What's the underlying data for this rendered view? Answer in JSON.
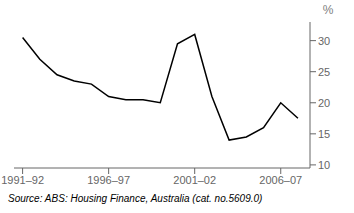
{
  "chart_data": {
    "type": "line",
    "ylabel": "%",
    "annotations": [
      "Source: ABS: Housing Finance, Australia (cat. no.5609.0)"
    ],
    "x": [
      1991.5,
      1992.5,
      1993.5,
      1994.5,
      1995.5,
      1996.5,
      1997.5,
      1998.5,
      1999.5,
      2000.5,
      2001.5,
      2002.5,
      2003.5,
      2004.5,
      2005.5,
      2006.5,
      2007.5
    ],
    "values": [
      30.5,
      27.0,
      24.5,
      23.5,
      23.0,
      21.0,
      20.5,
      20.5,
      20.0,
      29.5,
      31.0,
      21.0,
      14.0,
      14.5,
      16.0,
      20.0,
      17.5
    ],
    "color": "#000000",
    "xlim": [
      1991.0,
      2008.2
    ],
    "xticks": [
      {
        "value": 1991.5,
        "label": "1991–92"
      },
      {
        "value": 1996.5,
        "label": "1996–97"
      },
      {
        "value": 2001.5,
        "label": "2001–02"
      },
      {
        "value": 2006.5,
        "label": "2006–07"
      }
    ],
    "ylim": [
      9.5,
      33.0
    ],
    "yticks": [
      10,
      15,
      20,
      25,
      30
    ],
    "grid": false
  }
}
